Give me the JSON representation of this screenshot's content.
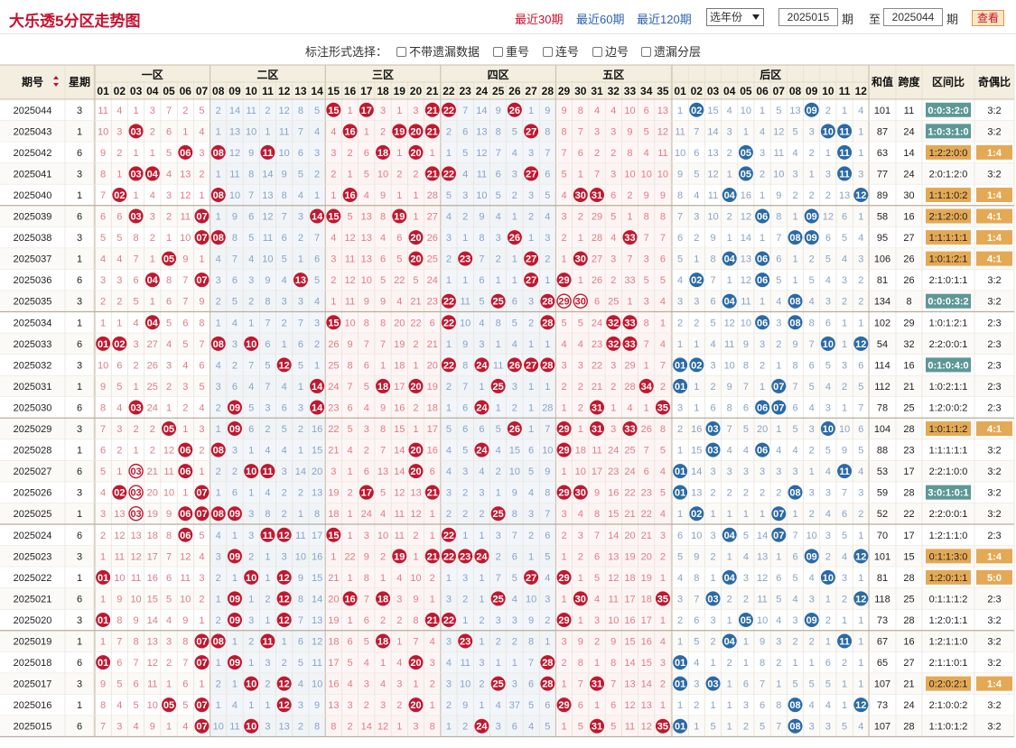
{
  "header": {
    "title": "大乐透5分区走势图",
    "periods": [
      {
        "label": "最近30期",
        "active": true
      },
      {
        "label": "最近60期",
        "active": false
      },
      {
        "label": "最近120期",
        "active": false
      }
    ],
    "year_select": "选年份",
    "from_value": "2025015",
    "from_suffix": "期",
    "to_prefix": "至",
    "to_value": "2025044",
    "to_suffix": "期",
    "query_button": "查看"
  },
  "options": {
    "label": "标注形式选择：",
    "items": [
      "不带遗漏数据",
      "重号",
      "连号",
      "边号",
      "遗漏分层"
    ]
  },
  "table": {
    "headers": {
      "period": "期号",
      "week": "星期",
      "sum": "和值",
      "span": "跨度",
      "ratio": "区间比",
      "oddeven": "奇偶比"
    },
    "zones": [
      "一区",
      "二区",
      "三区",
      "四区",
      "五区"
    ],
    "back_zone": "后区",
    "front_numbers": [
      "01",
      "02",
      "03",
      "04",
      "05",
      "06",
      "07",
      "08",
      "09",
      "10",
      "11",
      "12",
      "13",
      "14",
      "15",
      "16",
      "17",
      "18",
      "19",
      "20",
      "21",
      "22",
      "23",
      "24",
      "25",
      "26",
      "27",
      "28",
      "29",
      "30",
      "31",
      "32",
      "33",
      "34",
      "35"
    ],
    "back_numbers": [
      "01",
      "02",
      "03",
      "04",
      "05",
      "06",
      "07",
      "08",
      "09",
      "10",
      "11",
      "12"
    ],
    "colors": {
      "red": "#c0182f",
      "blue": "#2a6aa6",
      "ratio_normal": "#5c9896",
      "ratio_warn": "#e4a955",
      "zone_blue": "#e8eff8",
      "zone_red": "#fdeeee"
    },
    "rows": [
      {
        "p": "2025044",
        "w": "3",
        "f": "11,4,1,3,7,2,5,2,14,11,2,12,8,5,*,1,*,3,1,3,*,*,7,14,9,*,1,9,9,8,4,4,10,6,13",
        "b": "1,*,15,4,10,1,5,13,*,2,1,4",
        "s": "101",
        "k": "11",
        "r": "0:0:3:2:0",
        "rh": "n",
        "oe": "3:2",
        "oh": ""
      },
      {
        "p": "2025043",
        "w": "1",
        "f": "10,3,*,2,6,1,4,1,13,10,1,11,7,4,4,*,1,2,*,*,*,2,6,13,8,5,*,8,8,7,3,3,9,5,12",
        "b": "11,7,14,3,1,4,12,5,3,*,*,1",
        "s": "87",
        "k": "24",
        "r": "1:0:3:1:0",
        "rh": "n",
        "oe": "3:2",
        "oh": ""
      },
      {
        "p": "2025042",
        "w": "6",
        "f": "9,2,1,1,5,*,3,*,12,9,*,10,6,3,3,2,6,*,1,*,1,1,5,12,7,4,3,7,7,6,2,2,8,4,11",
        "b": "10,6,13,2,*,3,11,4,2,1,*,1",
        "s": "63",
        "k": "14",
        "r": "1:2:2:0:0",
        "rh": "w",
        "oe": "1:4",
        "oh": "w"
      },
      {
        "p": "2025041",
        "w": "3",
        "f": "8,1,*,*,4,13,2,1,11,8,14,9,5,2,2,1,5,10,2,2,*,*,4,11,6,3,*,6,5,1,7,3,10,10,10",
        "b": "9,5,12,1,*,2,10,3,1,3,*,3",
        "s": "77",
        "k": "24",
        "r": "2:0:1:2:0",
        "rh": "",
        "oe": "3:2",
        "oh": ""
      },
      {
        "p": "2025040",
        "w": "1",
        "f": "7,*,1,4,3,12,1,*,10,7,13,8,4,1,1,*,4,9,1,1,28,5,3,10,5,2,3,5,4,*,*,6,2,9,9",
        "b": "8,4,11,*,16,1,9,2,2,2,13,*",
        "s": "89",
        "k": "30",
        "r": "1:1:1:0:2",
        "rh": "w",
        "oe": "1:4",
        "oh": "w"
      },
      {
        "p": "2025039",
        "w": "6",
        "f": "6,6,*,3,2,11,*,1,9,6,12,7,3,*,*,5,13,8,*,1,27,4,2,9,4,1,2,4,3,2,29,5,1,8,8",
        "b": "7,3,10,2,12,*,8,1,*,12,6,1",
        "s": "58",
        "k": "16",
        "r": "2:1:2:0:0",
        "rh": "w",
        "oe": "4:1",
        "oh": "w"
      },
      {
        "p": "2025038",
        "w": "3",
        "f": "5,5,8,2,1,10,*,*,8,5,11,6,2,7,4,12,13,4,6,*,26,3,1,8,3,*,1,3,2,1,28,4,*,7,7",
        "b": "6,2,9,1,14,1,7,*,*,6,5,4",
        "s": "95",
        "k": "27",
        "r": "1:1:1:1:1",
        "rh": "w",
        "oe": "1:4",
        "oh": "w"
      },
      {
        "p": "2025037",
        "w": "1",
        "f": "4,4,7,1,*,9,1,4,7,4,10,5,1,6,3,11,13,6,5,*,25,2,*,7,2,1,*,2,1,*,27,3,7,3,6",
        "b": "5,1,8,*,13,*,6,1,2,5,4,3",
        "s": "106",
        "k": "26",
        "r": "1:0:1:2:1",
        "rh": "w",
        "oe": "4:1",
        "oh": "w"
      },
      {
        "p": "2025036",
        "w": "6",
        "f": "3,3,6,*,8,7,*,3,6,3,9,4,*,5,2,12,10,5,22,5,24,1,1,6,1,1,*,1,*,1,26,2,33,5,5",
        "b": "4,*,7,1,12,*,5,1,5,4,3,2",
        "s": "81",
        "k": "26",
        "r": "2:1:0:1:1",
        "rh": "",
        "oe": "3:2",
        "oh": ""
      },
      {
        "p": "2025035",
        "w": "3",
        "f": "2,2,5,1,6,7,9,2,5,2,8,3,3,4,1,11,9,9,4,21,23,*,11,5,*,6,3,*,#,#,6,25,1,3,4",
        "b": "3,3,6,*,11,1,4,*,4,3,2,2",
        "s": "134",
        "k": "8",
        "r": "0:0:0:3:2",
        "rh": "n",
        "oe": "3:2",
        "oh": ""
      },
      {
        "p": "2025034",
        "w": "1",
        "f": "1,1,4,*,5,6,8,1,4,1,7,2,7,3,*,10,8,8,20,22,6,*,10,4,8,5,2,*,5,5,24,*,*,8,1",
        "b": "2,2,5,12,10,*,3,*,8,6,1,1",
        "s": "102",
        "k": "29",
        "r": "1:0:1:2:1",
        "rh": "",
        "oe": "2:3",
        "oh": ""
      },
      {
        "p": "2025033",
        "w": "6",
        "f": "*,*,3,27,4,5,7,*,3,*,6,1,6,2,26,9,7,7,19,2,21,1,9,3,1,4,1,1,4,4,23,*,*,7,4",
        "b": "1,1,4,11,9,3,2,9,7,*,1,*",
        "s": "54",
        "k": "32",
        "r": "2:2:0:0:1",
        "rh": "",
        "oe": "2:3",
        "oh": ""
      },
      {
        "p": "2025032",
        "w": "3",
        "f": "10,6,2,26,3,4,6,4,2,7,5,*,5,1,25,8,6,1,18,1,20,*,8,*,11,*,*,*,3,3,22,3,29,1,7",
        "b": "*,*,3,10,8,2,1,8,6,5,3,6",
        "s": "114",
        "k": "16",
        "r": "0:1:0:4:0",
        "rh": "n",
        "oe": "2:3",
        "oh": ""
      },
      {
        "p": "2025031",
        "w": "1",
        "f": "9,5,1,25,2,3,5,3,6,4,7,4,1,*,24,7,5,*,17,*,19,2,7,1,*,3,1,1,2,2,21,2,28,*,2",
        "b": "*,1,2,9,7,1,*,7,5,4,2,5",
        "s": "112",
        "k": "21",
        "r": "1:0:2:1:1",
        "rh": "",
        "oe": "2:3",
        "oh": ""
      },
      {
        "p": "2025030",
        "w": "6",
        "f": "8,4,*,24,1,2,4,2,*,5,3,6,3,*,23,6,4,9,16,2,18,1,6,*,1,2,1,28,1,2,*,1,4,1,*",
        "b": "3,1,6,8,6,*,*,6,4,3,1,7",
        "s": "78",
        "k": "25",
        "r": "1:2:0:0:2",
        "rh": "",
        "oe": "2:3",
        "oh": ""
      },
      {
        "p": "2025029",
        "w": "3",
        "f": "7,3,2,2,*,1,3,1,*,6,2,5,2,16,22,5,3,8,15,1,17,5,6,6,5,*,1,7,*,1,*,3,*,26,8",
        "b": "2,16,*,7,5,20,1,5,3,*,10,6",
        "s": "104",
        "k": "28",
        "r": "1:0:1:1:2",
        "rh": "w",
        "oe": "4:1",
        "oh": "w"
      },
      {
        "p": "2025028",
        "w": "1",
        "f": "6,2,1,2,12,*,2,*,3,1,4,4,1,15,21,4,2,7,14,*,16,4,5,*,4,15,6,10,*,18,11,24,25,7,5",
        "b": "1,15,*,4,4,*,4,4,2,5,9,5",
        "s": "88",
        "k": "23",
        "r": "1:1:1:1:1",
        "rh": "",
        "oe": "3:2",
        "oh": ""
      },
      {
        "p": "2025027",
        "w": "6",
        "f": "5,1,@,21,11,*,1,2,2,*,*,3,14,20,3,1,6,13,14,*,6,4,3,4,2,10,5,9,1,10,17,23,24,6,4",
        "b": "*,14,3,3,3,3,3,3,1,4,*,4",
        "s": "53",
        "k": "17",
        "r": "2:2:1:0:0",
        "rh": "",
        "oe": "3:2",
        "oh": ""
      },
      {
        "p": "2025026",
        "w": "3",
        "f": "4,*,@,20,10,1,*,1,6,1,4,2,2,13,19,2,*,5,12,13,*,3,2,3,1,9,4,8,*,*,9,16,22,23,5",
        "b": "*,13,2,2,2,2,2,*,3,3,7,3",
        "s": "59",
        "k": "28",
        "r": "3:0:1:0:1",
        "rh": "n",
        "oe": "3:2",
        "oh": ""
      },
      {
        "p": "2025025",
        "w": "1",
        "f": "3,13,@,19,9,*,*,*,*,3,8,2,1,8,18,1,24,4,11,12,1,2,2,2,*,8,3,7,3,4,8,15,21,22,4",
        "b": "1,*,1,1,1,1,*,1,2,4,6,2",
        "s": "52",
        "k": "22",
        "r": "2:2:0:0:1",
        "rh": "",
        "oe": "3:2",
        "oh": ""
      },
      {
        "p": "2025024",
        "w": "6",
        "f": "2,12,13,18,8,*,5,4,1,3,*,*,11,17,*,1,3,10,11,2,1,*,1,1,3,7,2,6,2,3,7,14,20,21,3",
        "b": "6,10,3,*,5,14,*,7,10,3,5,1",
        "s": "70",
        "k": "17",
        "r": "1:2:1:1:0",
        "rh": "",
        "oe": "2:3",
        "oh": ""
      },
      {
        "p": "2025023",
        "w": "3",
        "f": "1,11,12,17,7,12,4,3,*,2,1,3,10,16,1,22,9,2,*,1,*,*,*,*,2,6,1,5,1,2,6,13,19,20,2",
        "b": "5,9,2,1,4,13,1,6,*,2,4,*",
        "s": "101",
        "k": "15",
        "r": "0:1:1:3:0",
        "rh": "w",
        "oe": "1:4",
        "oh": "w"
      },
      {
        "p": "2025022",
        "w": "1",
        "f": "*,10,11,16,6,11,3,2,1,*,1,*,9,15,21,1,8,1,4,10,2,1,3,1,7,5,*,4,*,1,5,12,18,19,1",
        "b": "4,8,1,*,3,12,6,5,4,*,3,1",
        "s": "81",
        "k": "28",
        "r": "1:2:0:1:1",
        "rh": "w",
        "oe": "5:0",
        "oh": "w"
      },
      {
        "p": "2025021",
        "w": "6",
        "f": "1,9,10,15,5,10,2,1,*,1,2,*,8,14,20,*,7,*,3,9,1,3,2,1,*,4,10,3,1,*,4,11,17,18,*",
        "b": "3,7,*,2,2,11,5,4,3,1,2,*",
        "s": "118",
        "k": "25",
        "r": "0:1:1:1:2",
        "rh": "",
        "oe": "2:3",
        "oh": ""
      },
      {
        "p": "2025020",
        "w": "3",
        "f": "*,8,9,14,4,9,1,2,*,3,1,*,7,13,19,1,6,2,2,8,*,*,1,2,3,3,9,2,*,1,3,10,16,17,1",
        "b": "2,6,3,1,*,10,4,3,*,2,1,1",
        "s": "73",
        "k": "28",
        "r": "1:2:0:1:1",
        "rh": "",
        "oe": "3:2",
        "oh": ""
      },
      {
        "p": "2025019",
        "w": "1",
        "f": "1,7,8,13,3,8,*,*,1,2,*,1,6,12,18,6,5,*,1,7,4,3,*,1,2,2,8,1,3,9,2,9,15,16,4",
        "b": "1,5,2,*,1,9,3,2,2,1,*,1",
        "s": "67",
        "k": "16",
        "r": "1:2:1:1:0",
        "rh": "",
        "oe": "3:2",
        "oh": ""
      },
      {
        "p": "2025018",
        "w": "6",
        "f": "*,6,7,12,2,7,*,1,*,1,3,2,5,11,17,5,4,1,4,*,3,4,11,3,1,1,7,*,2,8,1,8,14,15,3",
        "b": "*,4,1,2,1,8,2,1,1,6,2,1",
        "s": "65",
        "k": "27",
        "r": "2:1:1:0:1",
        "rh": "",
        "oe": "3:2",
        "oh": ""
      },
      {
        "p": "2025017",
        "w": "3",
        "f": "9,5,6,11,1,6,1,2,1,*,2,*,4,10,16,4,3,4,3,1,2,3,10,2,*,3,6,*,1,7,*,7,13,14,2",
        "b": "*,3,*,1,6,7,1,5,5,5,1,1",
        "s": "107",
        "k": "21",
        "r": "0:2:0:2:1",
        "rh": "w",
        "oe": "1:4",
        "oh": "w"
      },
      {
        "p": "2025016",
        "w": "1",
        "f": "8,4,5,10,*,5,*,1,4,1,1,*,3,9,13,3,2,3,2,*,1,2,9,1,4,37,5,6,*,6,1,6,12,13,1",
        "b": "1,2,1,1,3,6,8,*,4,4,1,*",
        "s": "73",
        "k": "24",
        "r": "2:1:0:0:2",
        "rh": "",
        "oe": "3:2",
        "oh": ""
      },
      {
        "p": "2025015",
        "w": "6",
        "f": "7,3,4,9,1,4,*,10,11,*,3,13,2,8,8,2,14,12,1,3,8,1,2,*,3,6,4,5,1,5,*,5,11,12,*",
        "b": "*,1,5,1,2,5,7,*,3,3,5,4",
        "s": "107",
        "k": "28",
        "r": "1:1:0:1:2",
        "rh": "",
        "oe": "3:2",
        "oh": ""
      }
    ]
  }
}
